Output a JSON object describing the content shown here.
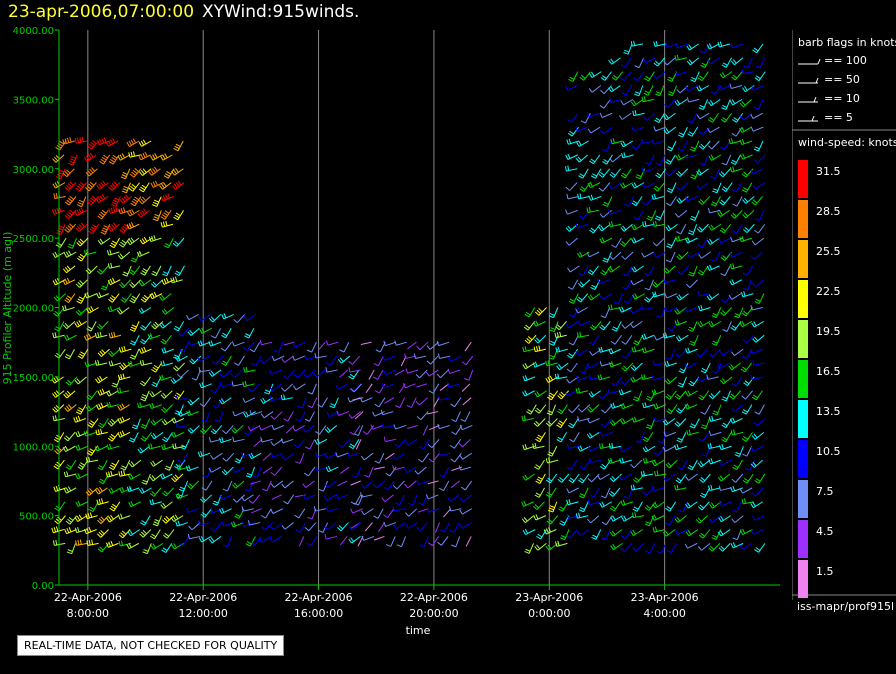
{
  "header": {
    "date": "23-apr-2006,07:00:00",
    "name": "XYWind:915winds."
  },
  "footer": {
    "notice": "REAL-TIME DATA, NOT CHECKED FOR QUALITY",
    "source": "iss-mapr/prof915l"
  },
  "legend": {
    "barb_title": "barb flags in knots",
    "barbs": [
      {
        "label": "== 100"
      },
      {
        "label": "== 50"
      },
      {
        "label": "== 10"
      },
      {
        "label": "== 5"
      }
    ],
    "speed_title": "wind-speed: knots",
    "speed_bins": [
      {
        "label": "31.5",
        "color": "#ff0000"
      },
      {
        "label": "28.5",
        "color": "#ff8000"
      },
      {
        "label": "25.5",
        "color": "#ffb000"
      },
      {
        "label": "22.5",
        "color": "#ffff00"
      },
      {
        "label": "19.5",
        "color": "#aaff44"
      },
      {
        "label": "16.5",
        "color": "#00dd00"
      },
      {
        "label": "13.5",
        "color": "#00ffff"
      },
      {
        "label": "10.5",
        "color": "#0000ff"
      },
      {
        "label": "7.5",
        "color": "#6f8ff8"
      },
      {
        "label": "4.5",
        "color": "#9b30ff"
      },
      {
        "label": "1.5",
        "color": "#ee82ee"
      }
    ]
  },
  "chart_data": {
    "type": "scatter",
    "title": "XYWind:915winds.",
    "xlabel": "time",
    "ylabel": "915 Profiler Altitude (m agl)",
    "ylim": [
      0,
      4000
    ],
    "yticks": [
      "0.00",
      "500.00",
      "1000.00",
      "1500.00",
      "2000.00",
      "2500.00",
      "3000.00",
      "3500.00",
      "4000.00"
    ],
    "xticks": [
      {
        "date": "22-Apr-2006",
        "time": "8:00:00"
      },
      {
        "date": "22-Apr-2006",
        "time": "12:00:00"
      },
      {
        "date": "22-Apr-2006",
        "time": "16:00:00"
      },
      {
        "date": "22-Apr-2006",
        "time": "20:00:00"
      },
      {
        "date": "23-Apr-2006",
        "time": "0:00:00"
      },
      {
        "date": "23-Apr-2006",
        "time": "4:00:00"
      }
    ],
    "xlim_hours_from_2006_04_22_08": [
      -1.0,
      24.0
    ],
    "grid": "vertical",
    "colors": {
      "axis": "#00cc00",
      "grid": "#888888"
    },
    "profile_groups": [
      {
        "t0": -0.8,
        "t1": 1.8,
        "zmin": 300,
        "zmax": 3200,
        "speed": 20
      },
      {
        "t0": 1.8,
        "t1": 3.5,
        "zmin": 300,
        "zmax": 3200,
        "speed": 17
      },
      {
        "t0": 3.5,
        "t1": 6.0,
        "zmin": 350,
        "zmax": 2000,
        "speed": 11
      },
      {
        "t0": 6.0,
        "t1": 9.5,
        "zmin": 350,
        "zmax": 1800,
        "speed": 8
      },
      {
        "t0": 9.5,
        "t1": 13.5,
        "zmin": 350,
        "zmax": 1800,
        "speed": 6
      },
      {
        "t0": 15.5,
        "t1": 17.0,
        "zmin": 300,
        "zmax": 2000,
        "speed": 18
      },
      {
        "t0": 17.0,
        "t1": 18.5,
        "zmin": 400,
        "zmax": 3700,
        "speed": 11
      },
      {
        "t0": 18.5,
        "t1": 23.5,
        "zmin": 300,
        "zmax": 3900,
        "speed": 13
      }
    ]
  }
}
